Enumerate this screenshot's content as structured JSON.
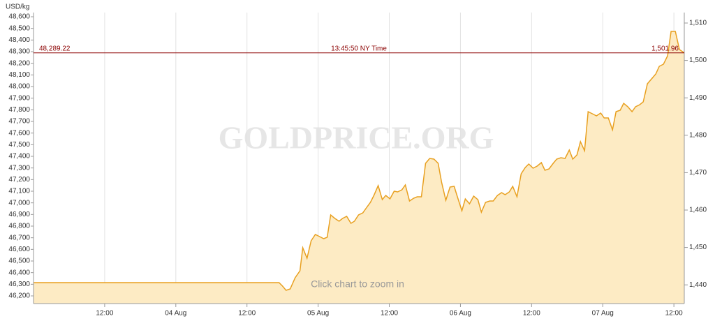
{
  "chart_data": {
    "type": "area",
    "y_axis_label": "USD/kg",
    "watermark": "GOLDPRICE.ORG",
    "hint": "Click chart to zoom in",
    "x": [
      0,
      41.41,
      42,
      42.59,
      43.29,
      44.12,
      44.94,
      45.41,
      46.12,
      46.82,
      47.53,
      48.24,
      48.94,
      49.53,
      50.12,
      50.82,
      51.53,
      52.12,
      52.82,
      53.53,
      54.12,
      54.82,
      55.53,
      56.12,
      56.82,
      57.41,
      58.12,
      58.82,
      59.41,
      60.12,
      60.82,
      61.41,
      62.12,
      62.71,
      63.41,
      64.12,
      64.71,
      65.41,
      66.12,
      66.82,
      67.53,
      68.24,
      68.82,
      69.53,
      70.24,
      70.94,
      71.53,
      72.24,
      72.82,
      73.53,
      74.24,
      74.94,
      75.53,
      76.24,
      76.94,
      77.53,
      78.24,
      78.94,
      79.53,
      80.24,
      80.82,
      81.53,
      82.24,
      82.94,
      83.53,
      84.24,
      84.94,
      85.65,
      86.24,
      86.94,
      87.65,
      88.24,
      88.94,
      89.65,
      90.35,
      90.94,
      91.65,
      92.24,
      92.94,
      93.53,
      94.24,
      94.94,
      95.65,
      96.24,
      96.94,
      97.65,
      98.24,
      98.94,
      99.53,
      100.24,
      100.94,
      101.53,
      102.24,
      102.82,
      103.53,
      104.24,
      104.94,
      105.53,
      106.24,
      106.94,
      107.53,
      108.24,
      108.94,
      109.75
    ],
    "series": [
      {
        "color": "#e8a020",
        "fill": "#fdebc4",
        "values": [
          46314,
          46314,
          46284,
          46248,
          46260,
          46356,
          46416,
          46614,
          46524,
          46674,
          46728,
          46710,
          46692,
          46704,
          46896,
          46866,
          46842,
          46866,
          46884,
          46824,
          46842,
          46896,
          46914,
          46956,
          47004,
          47064,
          47148,
          47028,
          47064,
          47034,
          47100,
          47094,
          47112,
          47154,
          47016,
          47040,
          47052,
          47052,
          47340,
          47382,
          47376,
          47340,
          47178,
          47022,
          47136,
          47142,
          47046,
          46932,
          47034,
          46992,
          47058,
          47028,
          46920,
          47004,
          47016,
          47016,
          47064,
          47088,
          47070,
          47094,
          47142,
          47052,
          47250,
          47304,
          47334,
          47298,
          47316,
          47346,
          47280,
          47292,
          47340,
          47376,
          47388,
          47382,
          47454,
          47376,
          47412,
          47526,
          47448,
          47784,
          47766,
          47748,
          47772,
          47730,
          47730,
          47628,
          47784,
          47796,
          47856,
          47826,
          47784,
          47826,
          47844,
          47868,
          48024,
          48066,
          48108,
          48174,
          48192,
          48264,
          48474,
          48474,
          48318,
          48289.22
        ]
      }
    ],
    "xlim": [
      0,
      109.75
    ],
    "xticks": [
      {
        "value": 12,
        "label": "12:00"
      },
      {
        "value": 24,
        "label": "04 Aug"
      },
      {
        "value": 36,
        "label": "12:00"
      },
      {
        "value": 48,
        "label": "05 Aug"
      },
      {
        "value": 60,
        "label": "12:00"
      },
      {
        "value": 72,
        "label": "06 Aug"
      },
      {
        "value": 84,
        "label": "12:00"
      },
      {
        "value": 96,
        "label": "07 Aug"
      },
      {
        "value": 108,
        "label": "12:00"
      }
    ],
    "ylim": [
      46134,
      48636
    ],
    "yticks": [
      {
        "value": 46200,
        "label": "46,200"
      },
      {
        "value": 46300,
        "label": "46,300"
      },
      {
        "value": 46400,
        "label": "46,400"
      },
      {
        "value": 46500,
        "label": "46,500"
      },
      {
        "value": 46600,
        "label": "46,600"
      },
      {
        "value": 46700,
        "label": "46,700"
      },
      {
        "value": 46800,
        "label": "46,800"
      },
      {
        "value": 46900,
        "label": "46,900"
      },
      {
        "value": 47000,
        "label": "47,000"
      },
      {
        "value": 47100,
        "label": "47,100"
      },
      {
        "value": 47200,
        "label": "47,200"
      },
      {
        "value": 47300,
        "label": "47,300"
      },
      {
        "value": 47400,
        "label": "47,400"
      },
      {
        "value": 47500,
        "label": "47,500"
      },
      {
        "value": 47600,
        "label": "47,600"
      },
      {
        "value": 47700,
        "label": "47,700"
      },
      {
        "value": 47800,
        "label": "47,800"
      },
      {
        "value": 47900,
        "label": "47,900"
      },
      {
        "value": 48000,
        "label": "48,000"
      },
      {
        "value": 48100,
        "label": "48,100"
      },
      {
        "value": 48200,
        "label": "48,200"
      },
      {
        "value": 48300,
        "label": "48,300"
      },
      {
        "value": 48400,
        "label": "48,400"
      },
      {
        "value": 48500,
        "label": "48,500"
      },
      {
        "value": 48600,
        "label": "48,600"
      }
    ],
    "y2lim": [
      1435,
      1512.8
    ],
    "y2ticks": [
      {
        "value": 1440,
        "label": "1,440"
      },
      {
        "value": 1450,
        "label": "1,450"
      },
      {
        "value": 1460,
        "label": "1,460"
      },
      {
        "value": 1470,
        "label": "1,470"
      },
      {
        "value": 1480,
        "label": "1,480"
      },
      {
        "value": 1490,
        "label": "1,490"
      },
      {
        "value": 1500,
        "label": "1,500"
      },
      {
        "value": 1510,
        "label": "1,510"
      }
    ],
    "current": {
      "value": 48289.22,
      "label": "48,289.22",
      "time_label": "13:45:50 NY Time",
      "y2_value": 1501.96,
      "y2_label": "1,501.96",
      "color": "#8b0000"
    },
    "grid": true
  }
}
